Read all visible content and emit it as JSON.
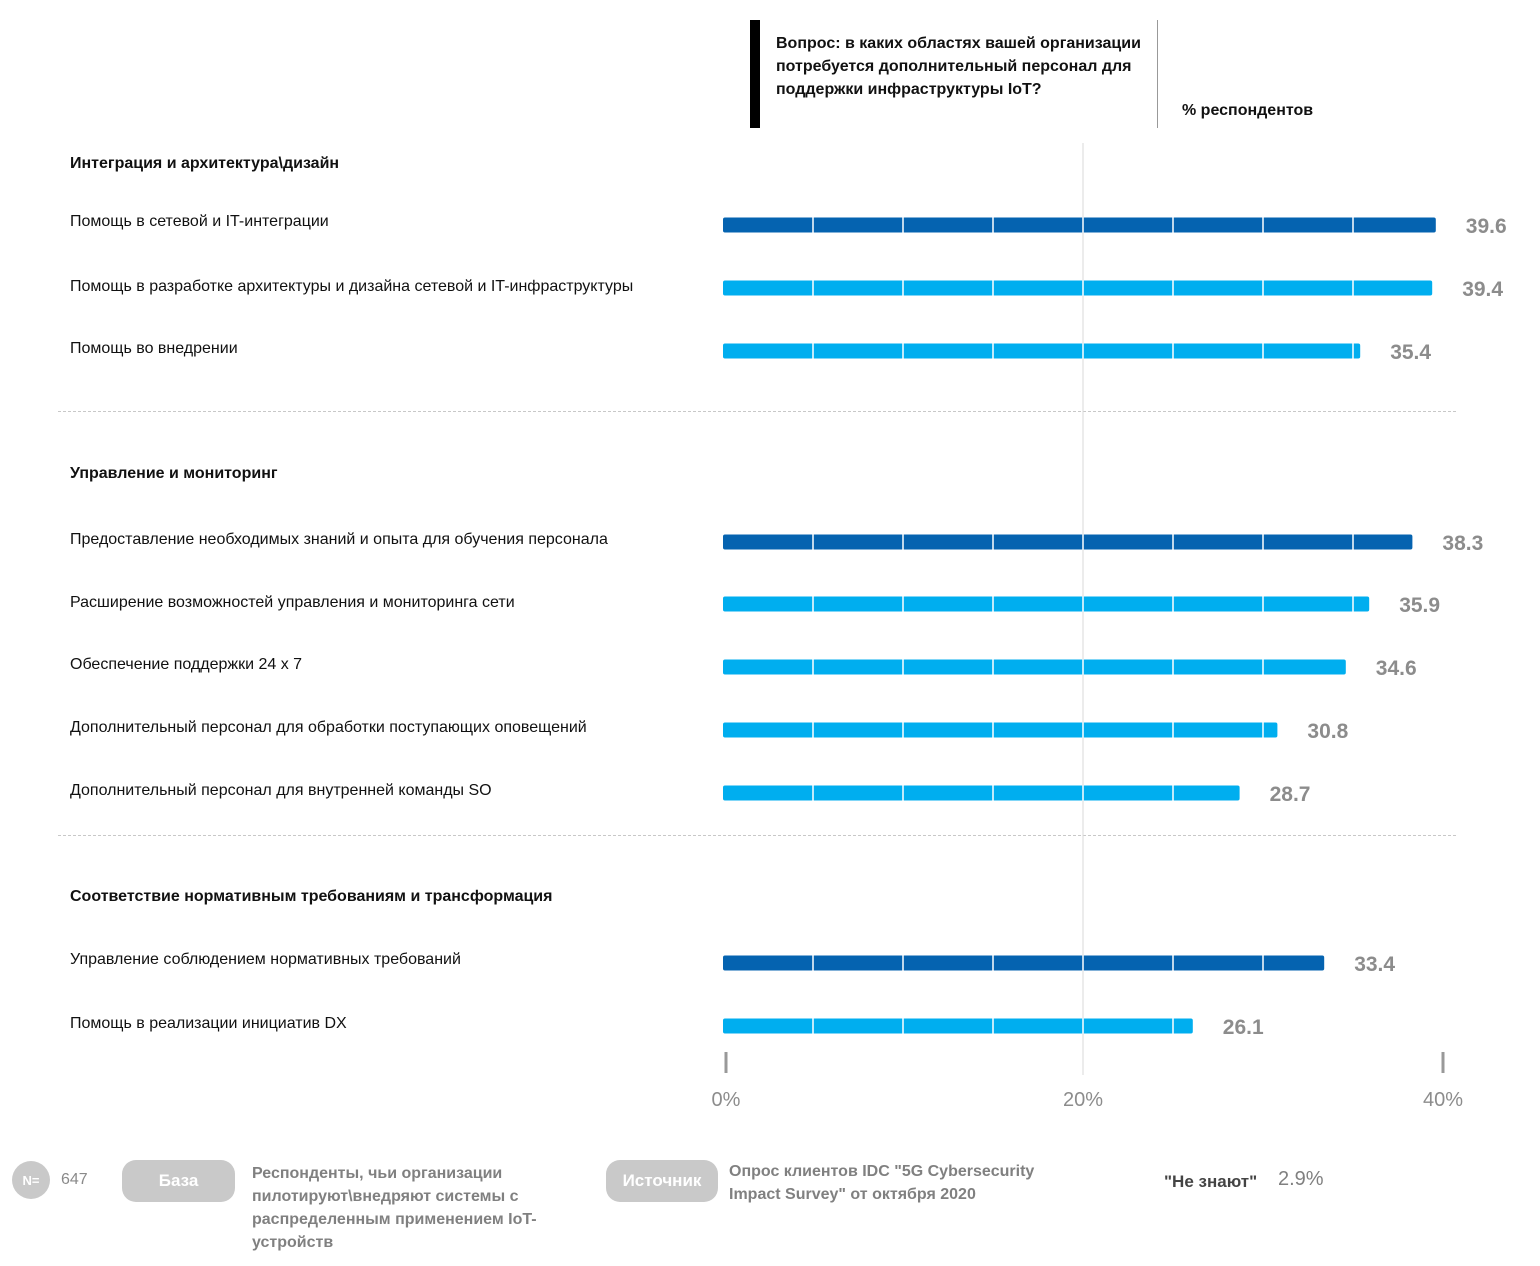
{
  "header": {
    "question": "Вопрос: в каких областях вашей организации потребуется дополнительный персонал для поддержки инфраструктуры IoT?",
    "unit": "% респондентов"
  },
  "groups": [
    {
      "title": "Интеграция и архитектура\\дизайн",
      "items": [
        {
          "label": "Помощь в сетевой и IT-интеграции",
          "value": 39.6,
          "display": "39.6",
          "highlight": true
        },
        {
          "label": "Помощь в разработке архитектуры и дизайна сетевой и IT-инфраструктуры",
          "value": 39.4,
          "display": "39.4",
          "highlight": false
        },
        {
          "label": "Помощь во внедрении",
          "value": 35.4,
          "display": "35.4",
          "highlight": false
        }
      ]
    },
    {
      "title": "Управление и мониторинг",
      "items": [
        {
          "label": "Предоставление необходимых знаний и опыта для обучения персонала",
          "value": 38.3,
          "display": "38.3",
          "highlight": true
        },
        {
          "label": "Расширение возможностей управления и мониторинга сети",
          "value": 35.9,
          "display": "35.9",
          "highlight": false
        },
        {
          "label": "Обеспечение поддержки 24 х 7",
          "value": 34.6,
          "display": "34.6",
          "highlight": false
        },
        {
          "label": "Дополнительный персонал для обработки поступающих оповещений",
          "value": 30.8,
          "display": "30.8",
          "highlight": false
        },
        {
          "label": "Дополнительный персонал для внутренней команды SO",
          "value": 28.7,
          "display": "28.7",
          "highlight": false
        }
      ]
    },
    {
      "title": "Соответствие нормативным требованиям и трансформация",
      "items": [
        {
          "label": "Управление соблюдением нормативных требований",
          "value": 33.4,
          "display": "33.4",
          "highlight": true
        },
        {
          "label": "Помощь в реализации инициатив DX",
          "value": 26.1,
          "display": "26.1",
          "highlight": false
        }
      ]
    }
  ],
  "chart_data": {
    "type": "bar",
    "orientation": "horizontal",
    "title": "Вопрос: в каких областях вашей организации потребуется дополнительный персонал для поддержки инфраструктуры IoT?",
    "xlabel": "% респондентов",
    "xlim": [
      0,
      40
    ],
    "x_ticks": [
      "0%",
      "20%",
      "40%"
    ],
    "categories": [
      "Помощь в сетевой и IT-интеграции",
      "Помощь в разработке архитектуры и дизайна сетевой и IT-инфраструктуры",
      "Помощь во внедрении",
      "Предоставление необходимых знаний и опыта для обучения персонала",
      "Расширение возможностей управления и мониторинга сети",
      "Обеспечение поддержки 24 х 7",
      "Дополнительный персонал для обработки поступающих оповещений",
      "Дополнительный персонал для внутренней команды SO",
      "Управление соблюдением нормативных требований",
      "Помощь в реализации инициатив DX"
    ],
    "values": [
      39.6,
      39.4,
      35.4,
      38.3,
      35.9,
      34.6,
      30.8,
      28.7,
      33.4,
      26.1
    ],
    "colors": {
      "highlight": "#0563b0",
      "normal": "#00aeef",
      "value_label": "#8c8c8c",
      "gridline": "#d9d9d9"
    }
  },
  "footer": {
    "n_label": "N=",
    "n_value": "647",
    "base_label": "База",
    "base_text": "Респонденты, чьи организации пилотируют\\внедряют системы с распределенным применением IoT-устройств",
    "source_label": "Источник",
    "source_text": "Опрос клиентов IDC \"5G Cybersecurity Impact Survey\" от октября 2020",
    "dont_know_label": "\"Не знают\"",
    "dont_know_value": "2.9%"
  }
}
